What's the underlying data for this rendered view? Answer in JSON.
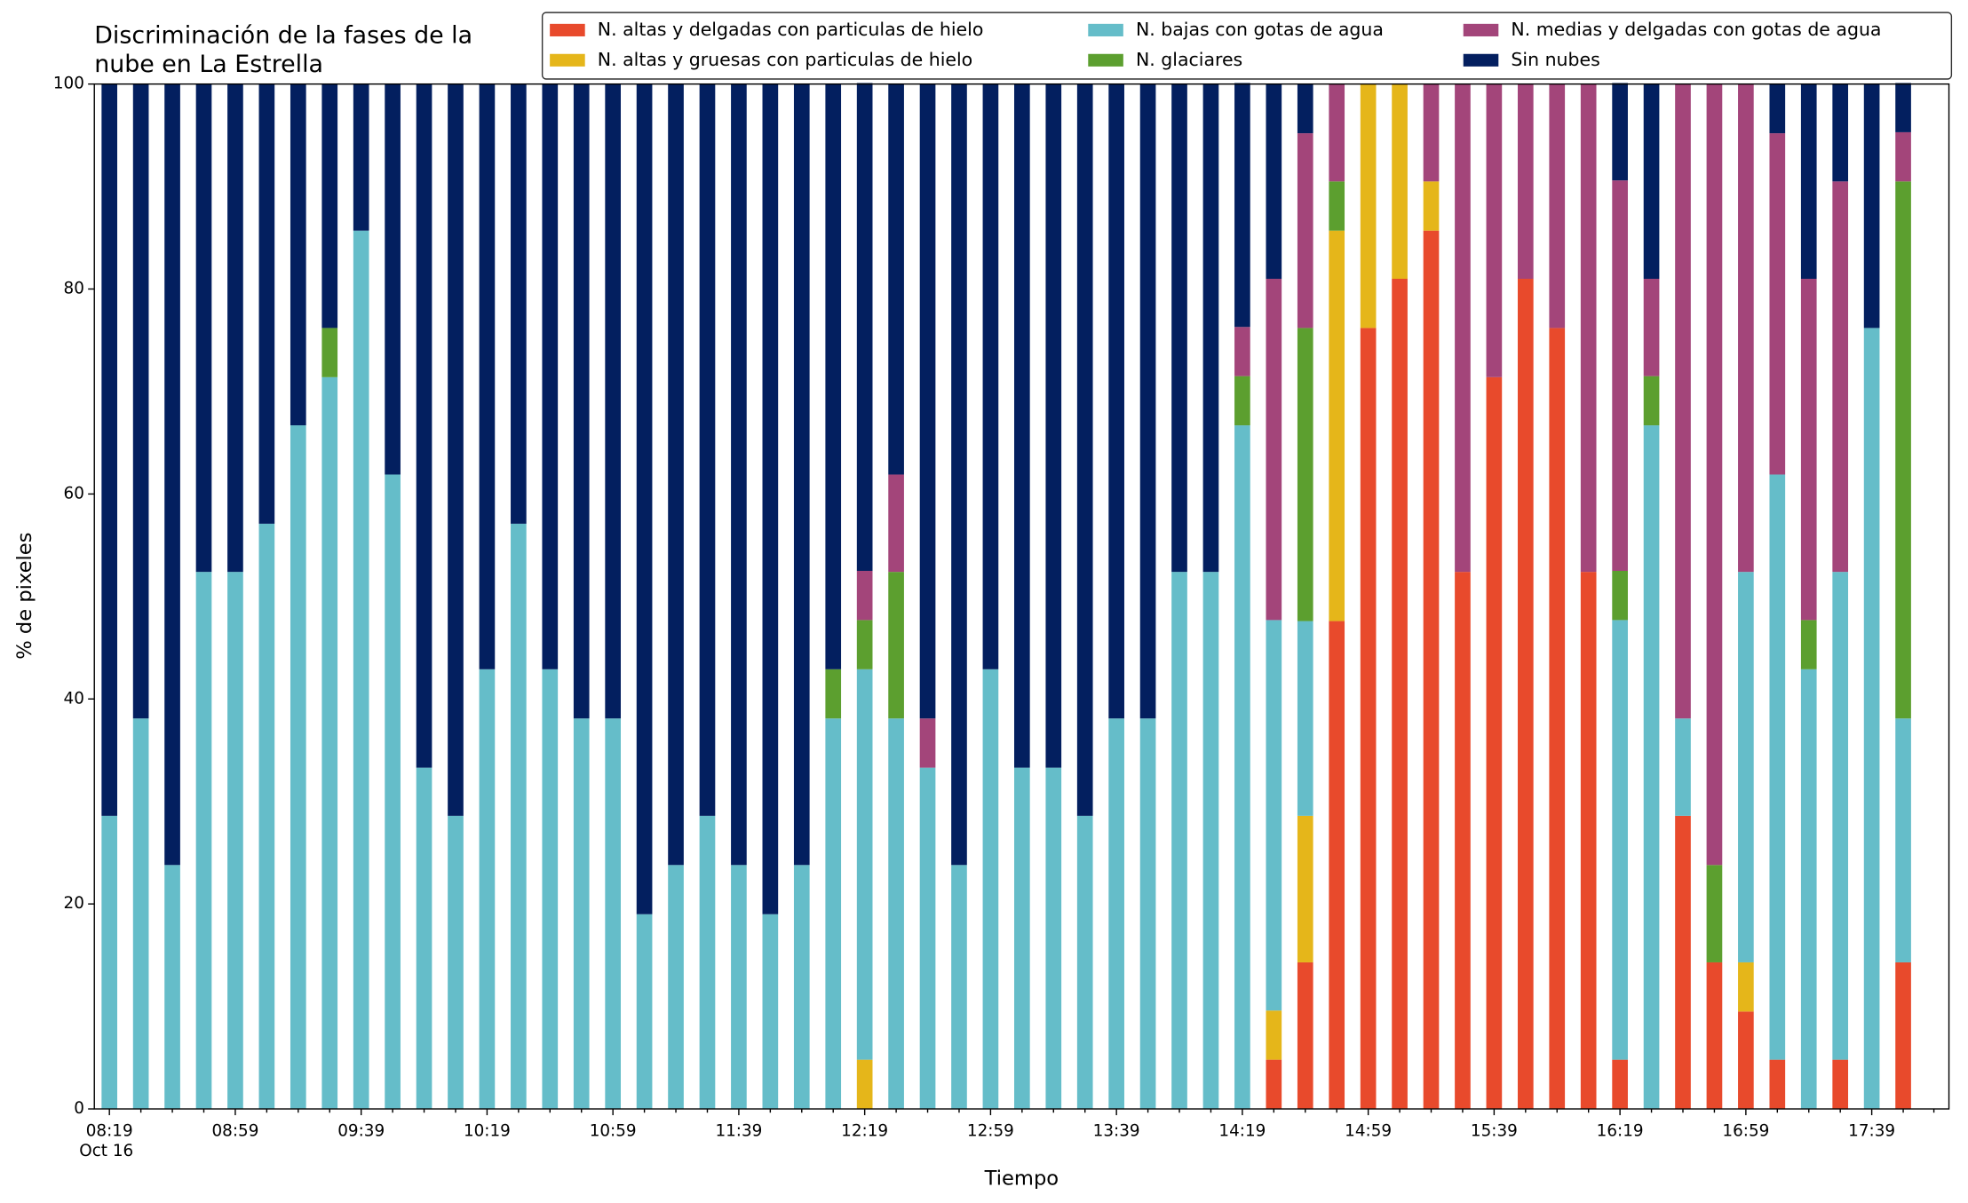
{
  "chart_data": {
    "type": "stacked_bar",
    "title": [
      "Discriminación de la fases de la",
      "nube en La Estrella"
    ],
    "xlabel": "Tiempo",
    "ylabel": "% de pixeles",
    "date_label": "Oct 16",
    "categories": [
      "08:19",
      null,
      null,
      null,
      "08:59",
      null,
      null,
      null,
      "09:39",
      null,
      null,
      null,
      "10:19",
      null,
      null,
      null,
      "10:59",
      null,
      null,
      null,
      "11:39",
      null,
      null,
      null,
      "12:19",
      null,
      null,
      null,
      "12:59",
      null,
      null,
      null,
      "13:39",
      null,
      null,
      null,
      "14:19",
      null,
      null,
      null,
      "14:59",
      null,
      null,
      null,
      "15:39",
      null,
      null,
      null,
      "16:19",
      null,
      null,
      null,
      "16:59",
      null,
      null,
      null,
      "17:39",
      null
    ],
    "ylim": [
      0,
      100
    ],
    "yticks": [
      0,
      20,
      40,
      60,
      80,
      100
    ],
    "legend": "upper right",
    "series": [
      {
        "name": "N. altas y delgadas con particulas de hielo",
        "color": "#e84a2c",
        "values": [
          0,
          0,
          0,
          0,
          0,
          0,
          0,
          0,
          0,
          0,
          0,
          0,
          0,
          0,
          0,
          0,
          0,
          0,
          0,
          0,
          0,
          0,
          0,
          0,
          0,
          0,
          0,
          0,
          0,
          0,
          0,
          0,
          0,
          0,
          0,
          0,
          0,
          4.8,
          14.3,
          47.6,
          76.2,
          81.0,
          85.7,
          52.4,
          71.4,
          81.0,
          76.2,
          52.4,
          4.8,
          0,
          28.6,
          14.3,
          9.5,
          4.8,
          0,
          4.8,
          0,
          14.3
        ]
      },
      {
        "name": "N. altas y gruesas con particulas de hielo",
        "color": "#e5b61a",
        "values": [
          0,
          0,
          0,
          0,
          0,
          0,
          0,
          0,
          0,
          0,
          0,
          0,
          0,
          0,
          0,
          0,
          0,
          0,
          0,
          0,
          0,
          0,
          0,
          0,
          4.8,
          0,
          0,
          0,
          0,
          0,
          0,
          0,
          0,
          0,
          0,
          0,
          0,
          4.8,
          14.3,
          38.1,
          23.8,
          19.0,
          4.8,
          0,
          0,
          0,
          0,
          0,
          0,
          0,
          0,
          0,
          4.8,
          0,
          0,
          0,
          0,
          0
        ]
      },
      {
        "name": "N. bajas con gotas de agua",
        "color": "#65bdc9",
        "values": [
          28.6,
          38.1,
          23.8,
          52.4,
          52.4,
          57.1,
          66.7,
          71.4,
          85.7,
          61.9,
          33.3,
          28.6,
          42.9,
          57.1,
          42.9,
          38.1,
          38.1,
          19.0,
          23.8,
          28.6,
          23.8,
          19.0,
          23.8,
          38.1,
          38.1,
          38.1,
          33.3,
          23.8,
          42.9,
          33.3,
          33.3,
          28.6,
          38.1,
          38.1,
          52.4,
          52.4,
          66.7,
          38.1,
          19.0,
          0,
          0,
          0,
          0,
          0,
          0,
          0,
          0,
          0,
          42.9,
          66.7,
          9.5,
          0,
          38.1,
          57.1,
          42.9,
          47.6,
          76.2,
          23.8
        ]
      },
      {
        "name": "N. glaciares",
        "color": "#5c9f2f",
        "values": [
          0,
          0,
          0,
          0,
          0,
          0,
          0,
          4.8,
          0,
          0,
          0,
          0,
          0,
          0,
          0,
          0,
          0,
          0,
          0,
          0,
          0,
          0,
          0,
          4.8,
          4.8,
          14.3,
          0,
          0,
          0,
          0,
          0,
          0,
          0,
          0,
          0,
          0,
          4.8,
          0,
          28.6,
          4.8,
          0,
          0,
          0,
          0,
          0,
          0,
          0,
          0,
          4.8,
          4.8,
          0,
          9.5,
          0,
          0,
          4.8,
          0,
          0,
          52.4
        ]
      },
      {
        "name": "N. medias y delgadas con gotas de agua",
        "color": "#a3457a",
        "values": [
          0,
          0,
          0,
          0,
          0,
          0,
          0,
          0,
          0,
          0,
          0,
          0,
          0,
          0,
          0,
          0,
          0,
          0,
          0,
          0,
          0,
          0,
          0,
          0,
          4.8,
          9.5,
          4.8,
          0,
          0,
          0,
          0,
          0,
          0,
          0,
          0,
          0,
          4.8,
          33.3,
          19.0,
          9.5,
          0,
          0,
          9.5,
          47.6,
          28.6,
          19.0,
          23.8,
          47.6,
          38.1,
          9.5,
          61.9,
          76.2,
          47.6,
          33.3,
          33.3,
          38.1,
          0,
          4.8
        ]
      },
      {
        "name": "Sin nubes",
        "color": "#031f5f",
        "values": [
          71.4,
          61.9,
          76.2,
          47.6,
          47.6,
          42.9,
          33.3,
          23.8,
          14.3,
          38.1,
          66.7,
          71.4,
          57.1,
          42.9,
          57.1,
          61.9,
          61.9,
          81.0,
          76.2,
          71.4,
          76.2,
          81.0,
          76.2,
          57.1,
          47.6,
          38.1,
          61.9,
          76.2,
          57.1,
          66.7,
          66.7,
          71.4,
          61.9,
          61.9,
          47.6,
          47.6,
          23.8,
          19.0,
          4.8,
          0,
          0,
          0,
          0,
          0,
          0,
          0,
          0,
          0,
          9.5,
          19.0,
          0,
          0,
          0,
          4.8,
          19.0,
          9.5,
          23.8,
          4.8
        ]
      }
    ]
  }
}
